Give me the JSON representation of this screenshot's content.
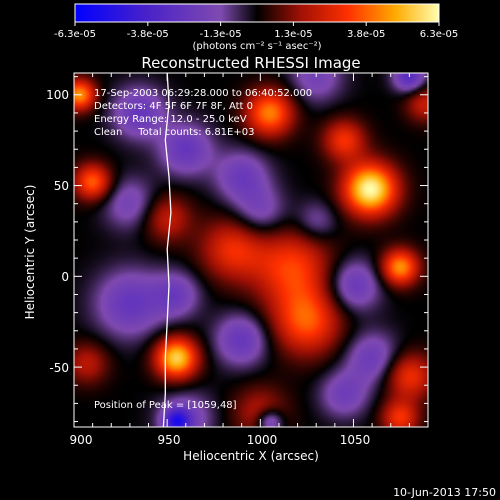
{
  "chart_data": {
    "type": "heatmap",
    "title": "Reconstructed RHESSI Image",
    "xlabel": "Heliocentric X (arcsec)",
    "ylabel": "Heliocentric Y (arcsec)",
    "xlim": [
      900,
      1090
    ],
    "ylim": [
      -83,
      112
    ],
    "xticks": [
      "900",
      "950",
      "1000",
      "1050"
    ],
    "xtick_values": [
      900,
      950,
      1000,
      1050
    ],
    "yticks": [
      "100",
      "50",
      "0",
      "-50"
    ],
    "ytick_values": [
      100,
      50,
      0,
      -50
    ],
    "colorbar": {
      "unit_label": "(photons cm⁻² s⁻¹ asec⁻²)",
      "tick_labels": [
        "-6.3e-05",
        "-3.8e-05",
        "-1.3e-05",
        "1.3e-05",
        "3.8e-05",
        "6.3e-05"
      ],
      "range": [
        -6.3e-05,
        6.3e-05
      ]
    },
    "annotations": [
      "17-Sep-2003 06:29:28.000 to 06:40:52.000",
      "Detectors: 4F 5F 6F 7F 8F, Att 0",
      "Energy Range: 12.0 - 25.0 keV",
      "Clean     Total counts: 6.81E+03",
      "Position of Peak = [1059,48]"
    ],
    "timestamp": "10-Jun-2013 17:50",
    "limb_color": "#ffffff",
    "blobs": [
      {
        "x": 1059,
        "y": 48,
        "v": 6.3e-05,
        "s": 10
      },
      {
        "x": 1045,
        "y": 75,
        "v": 3e-05,
        "s": 8
      },
      {
        "x": 1005,
        "y": 90,
        "v": 4.2e-05,
        "s": 9
      },
      {
        "x": 1017,
        "y": 5,
        "v": 3.2e-05,
        "s": 15
      },
      {
        "x": 985,
        "y": 15,
        "v": 2.8e-05,
        "s": 12
      },
      {
        "x": 1025,
        "y": -25,
        "v": 3.5e-05,
        "s": 13
      },
      {
        "x": 1075,
        "y": 5,
        "v": 4.5e-05,
        "s": 7
      },
      {
        "x": 1080,
        "y": -55,
        "v": 3e-05,
        "s": 9
      },
      {
        "x": 955,
        "y": -45,
        "v": 5.5e-05,
        "s": 8
      },
      {
        "x": 950,
        "y": 32,
        "v": 2.2e-05,
        "s": 9
      },
      {
        "x": 910,
        "y": 52,
        "v": 3.8e-05,
        "s": 7
      },
      {
        "x": 903,
        "y": 100,
        "v": 4.5e-05,
        "s": 6
      },
      {
        "x": 907,
        "y": -48,
        "v": 2e-05,
        "s": 8
      },
      {
        "x": 1075,
        "y": -78,
        "v": 3e-05,
        "s": 7
      },
      {
        "x": 1000,
        "y": -75,
        "v": 2e-05,
        "s": 10
      },
      {
        "x": 1088,
        "y": 95,
        "v": 2.2e-05,
        "s": 7
      },
      {
        "x": 935,
        "y": 90,
        "v": -2.5e-05,
        "s": 10
      },
      {
        "x": 960,
        "y": 70,
        "v": -2.5e-05,
        "s": 10
      },
      {
        "x": 1080,
        "y": 110,
        "v": -3.2e-05,
        "s": 6
      },
      {
        "x": 930,
        "y": -15,
        "v": -2.5e-05,
        "s": 13
      },
      {
        "x": 990,
        "y": 55,
        "v": -2.2e-05,
        "s": 10
      },
      {
        "x": 990,
        "y": -35,
        "v": -2.5e-05,
        "s": 10
      },
      {
        "x": 1050,
        "y": -5,
        "v": -2.5e-05,
        "s": 10
      },
      {
        "x": 1060,
        "y": -45,
        "v": -2.2e-05,
        "s": 10
      },
      {
        "x": 955,
        "y": -10,
        "v": -2e-05,
        "s": 9
      },
      {
        "x": 1000,
        "y": 35,
        "v": -1.8e-05,
        "s": 10
      },
      {
        "x": 930,
        "y": 40,
        "v": -1.8e-05,
        "s": 10
      },
      {
        "x": 960,
        "y": -78,
        "v": -2e-05,
        "s": 10
      },
      {
        "x": 1030,
        "y": 110,
        "v": -1.8e-05,
        "s": 10
      },
      {
        "x": 955,
        "y": -80,
        "v": -3.8e-05,
        "s": 5
      },
      {
        "x": 1005,
        "y": -80,
        "v": -3e-05,
        "s": 5
      },
      {
        "x": 1045,
        "y": -65,
        "v": -2e-05,
        "s": 9
      },
      {
        "x": 1030,
        "y": 30,
        "v": -1.5e-05,
        "s": 8
      }
    ],
    "limb_curve": [
      {
        "x": 950,
        "y": 112
      },
      {
        "x": 951,
        "y": 95
      },
      {
        "x": 949,
        "y": 75
      },
      {
        "x": 951,
        "y": 55
      },
      {
        "x": 952,
        "y": 35
      },
      {
        "x": 950,
        "y": 15
      },
      {
        "x": 951,
        "y": -5
      },
      {
        "x": 950,
        "y": -25
      },
      {
        "x": 949,
        "y": -45
      },
      {
        "x": 949,
        "y": -65
      },
      {
        "x": 948,
        "y": -83
      }
    ]
  }
}
